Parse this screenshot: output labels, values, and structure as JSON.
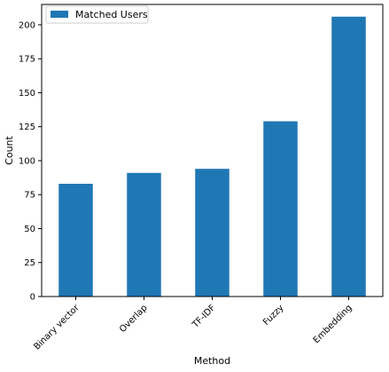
{
  "chart_data": {
    "type": "bar",
    "categories": [
      "Binary vector",
      "Overlap",
      "TF-IDF",
      "Fuzzy",
      "Embedding"
    ],
    "series": [
      {
        "name": "Matched Users",
        "values": [
          83,
          91,
          94,
          129,
          206
        ]
      }
    ],
    "xlabel": "Method",
    "ylabel": "Count",
    "ylim": [
      0,
      215
    ],
    "yticks": [
      0,
      25,
      50,
      75,
      100,
      125,
      150,
      175,
      200
    ],
    "xtick_rotation": 45,
    "grid": false,
    "legend_location": "upper-left",
    "colors": {
      "bar": "#1f77b4",
      "axis": "#000000",
      "legend_border": "#cccccc"
    }
  }
}
